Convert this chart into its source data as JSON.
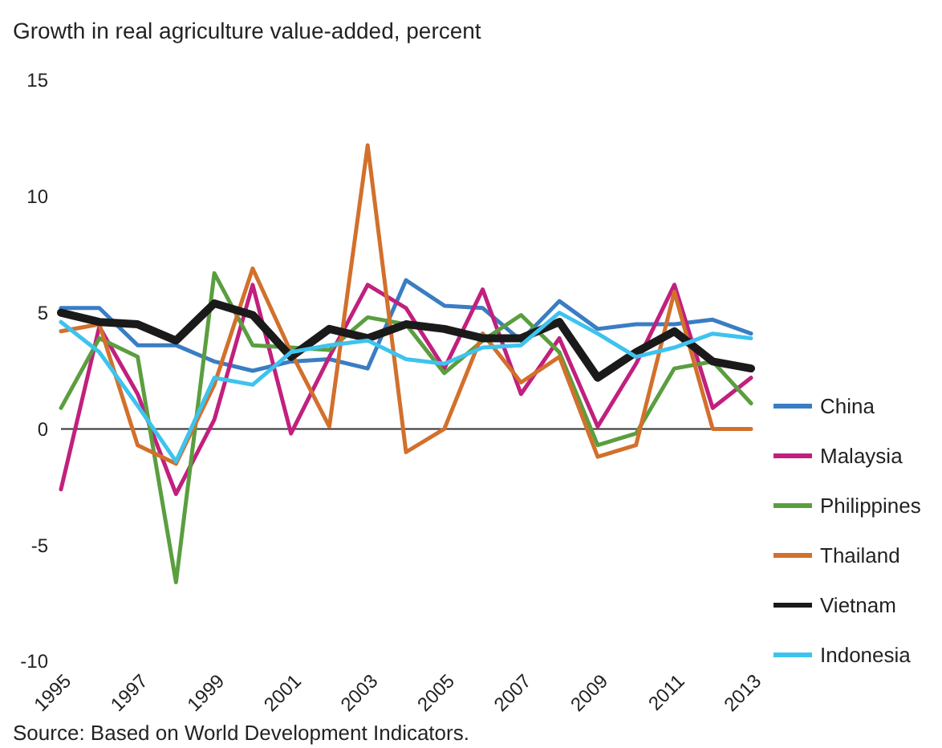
{
  "chart_data": {
    "type": "line",
    "title": "Growth in real agriculture value-added, percent",
    "x": [
      1995,
      1996,
      1997,
      1998,
      1999,
      2000,
      2001,
      2002,
      2003,
      2004,
      2005,
      2006,
      2007,
      2008,
      2009,
      2010,
      2011,
      2012,
      2013
    ],
    "xlim": [
      1995,
      2013
    ],
    "xticks": [
      1995,
      1997,
      1999,
      2001,
      2003,
      2005,
      2007,
      2009,
      2011,
      2013
    ],
    "ylim": [
      -10,
      15
    ],
    "yticks": [
      -10,
      -5,
      0,
      5,
      10,
      15
    ],
    "grid": false,
    "legend": "right",
    "marker": "none",
    "ref_lines": [
      {
        "axis": "y",
        "value": 0,
        "color": "#333333"
      }
    ],
    "series": [
      {
        "name": "China",
        "color": "#3a7dc3",
        "values": [
          5.2,
          5.2,
          3.6,
          3.6,
          2.9,
          2.5,
          2.9,
          3.0,
          2.6,
          6.4,
          5.3,
          5.2,
          3.8,
          5.5,
          4.3,
          4.5,
          4.5,
          4.7,
          4.1
        ]
      },
      {
        "name": "Malaysia",
        "color": "#c1207e",
        "values": [
          -2.6,
          4.4,
          1.5,
          -2.8,
          0.4,
          6.2,
          -0.2,
          3.1,
          6.2,
          5.2,
          2.6,
          6.0,
          1.5,
          3.9,
          0.1,
          2.8,
          6.2,
          0.9,
          2.2
        ]
      },
      {
        "name": "Philippines",
        "color": "#5b9e3f",
        "values": [
          0.9,
          3.9,
          3.1,
          -6.6,
          6.7,
          3.6,
          3.5,
          3.4,
          4.8,
          4.5,
          2.4,
          3.8,
          4.9,
          3.3,
          -0.7,
          -0.2,
          2.6,
          2.9,
          1.1
        ]
      },
      {
        "name": "Thailand",
        "color": "#d2702c",
        "values": [
          4.2,
          4.5,
          -0.7,
          -1.5,
          1.9,
          6.9,
          3.3,
          0.1,
          12.2,
          -1.0,
          0.0,
          4.1,
          2.0,
          3.1,
          -1.2,
          -0.7,
          5.9,
          0.0,
          0.0
        ]
      },
      {
        "name": "Vietnam",
        "color": "#1a1a1a",
        "values": [
          5.0,
          4.6,
          4.5,
          3.8,
          5.4,
          4.9,
          3.1,
          4.3,
          3.9,
          4.5,
          4.3,
          3.9,
          3.9,
          4.6,
          2.2,
          3.3,
          4.2,
          2.9,
          2.6
        ]
      },
      {
        "name": "Indonesia",
        "color": "#3ec3ee",
        "values": [
          4.6,
          3.3,
          1.0,
          -1.4,
          2.2,
          1.9,
          3.3,
          3.6,
          3.8,
          3.0,
          2.8,
          3.5,
          3.6,
          5.0,
          4.1,
          3.1,
          3.5,
          4.1,
          3.9
        ]
      }
    ],
    "annotations": [
      "Source: Based on World Development Indicators."
    ]
  }
}
